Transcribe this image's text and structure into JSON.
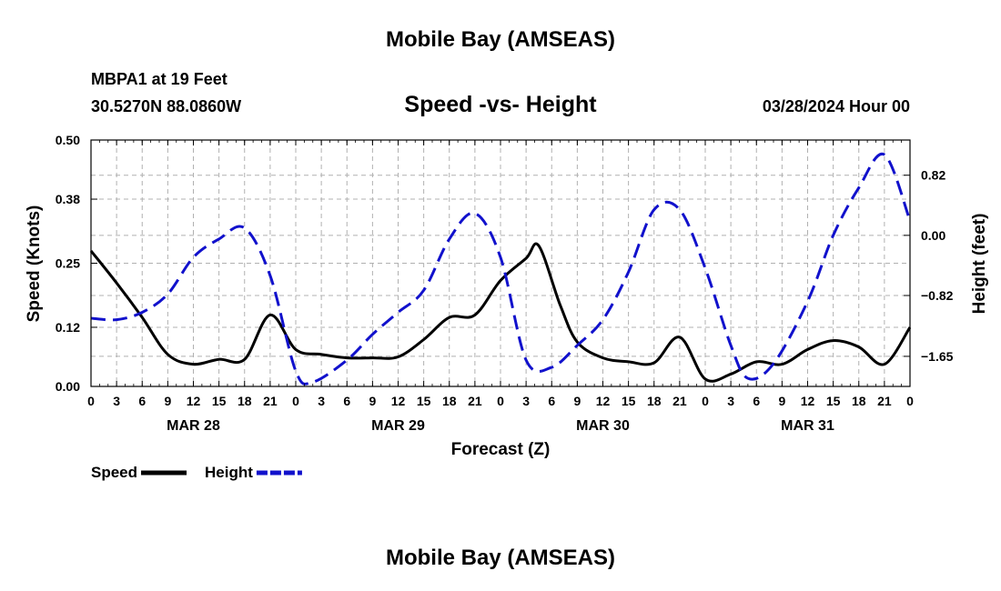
{
  "header": {
    "title": "Mobile Bay (AMSEAS)",
    "station": "MBPA1 at 19 Feet",
    "coords": "30.5270N  88.0860W",
    "date": "03/28/2024 Hour 00",
    "bottom_title": "Mobile Bay (AMSEAS)"
  },
  "chart_data": {
    "type": "line",
    "title": "Speed -vs- Height",
    "xlabel": "Forecast (Z)",
    "ylabel": "Speed (Knots)",
    "y2label": "Height (feet)",
    "x_unit": "forecast hour",
    "xlim": [
      0,
      96
    ],
    "ylim": [
      0,
      0.5
    ],
    "y2lim": [
      -2.06,
      1.3
    ],
    "x_ticks": [
      0,
      3,
      6,
      9,
      12,
      15,
      18,
      21,
      24,
      27,
      30,
      33,
      36,
      39,
      42,
      45,
      48,
      51,
      54,
      57,
      60,
      63,
      66,
      69,
      72,
      75,
      78,
      81,
      84,
      87,
      90,
      93,
      96
    ],
    "x_tick_labels": [
      "0",
      "3",
      "6",
      "9",
      "12",
      "15",
      "18",
      "21",
      "0",
      "3",
      "6",
      "9",
      "12",
      "15",
      "18",
      "21",
      "0",
      "3",
      "6",
      "9",
      "12",
      "15",
      "18",
      "21",
      "0",
      "3",
      "6",
      "9",
      "12",
      "15",
      "18",
      "21",
      "0"
    ],
    "day_labels": [
      {
        "label": "MAR 28",
        "at": 12
      },
      {
        "label": "MAR 29",
        "at": 36
      },
      {
        "label": "MAR 30",
        "at": 60
      },
      {
        "label": "MAR 31",
        "at": 84
      }
    ],
    "y_ticks": [
      0,
      0.12,
      0.25,
      0.38,
      0.5
    ],
    "y_tick_labels": [
      "0.00",
      "0.12",
      "0.25",
      "0.38",
      "0.50"
    ],
    "y2_ticks": [
      0.82,
      0,
      -0.82,
      -1.65
    ],
    "y2_tick_labels": [
      "0.82",
      "0.00",
      "−0.82",
      "−1.65"
    ],
    "grid": true,
    "legend_position": "bottom-left",
    "series": [
      {
        "name": "Speed",
        "axis": "left",
        "color": "#000000",
        "dash": "solid",
        "points": [
          [
            0,
            0.275
          ],
          [
            3,
            0.21
          ],
          [
            6,
            0.14
          ],
          [
            9,
            0.065
          ],
          [
            12,
            0.045
          ],
          [
            15,
            0.055
          ],
          [
            18,
            0.055
          ],
          [
            21,
            0.145
          ],
          [
            24,
            0.075
          ],
          [
            27,
            0.065
          ],
          [
            30,
            0.058
          ],
          [
            33,
            0.058
          ],
          [
            36,
            0.06
          ],
          [
            39,
            0.095
          ],
          [
            42,
            0.14
          ],
          [
            45,
            0.145
          ],
          [
            48,
            0.215
          ],
          [
            51,
            0.26
          ],
          [
            52.5,
            0.285
          ],
          [
            55,
            0.165
          ],
          [
            57,
            0.09
          ],
          [
            60,
            0.058
          ],
          [
            63,
            0.05
          ],
          [
            66,
            0.048
          ],
          [
            69,
            0.1
          ],
          [
            72,
            0.015
          ],
          [
            75,
            0.025
          ],
          [
            78,
            0.05
          ],
          [
            81,
            0.045
          ],
          [
            84,
            0.075
          ],
          [
            87,
            0.093
          ],
          [
            90,
            0.08
          ],
          [
            93,
            0.045
          ],
          [
            96,
            0.12
          ]
        ]
      },
      {
        "name": "Height",
        "axis": "right",
        "color": "#1111cc",
        "dash": "dashed",
        "points": [
          [
            0,
            -1.13
          ],
          [
            3,
            -1.15
          ],
          [
            6,
            -1.05
          ],
          [
            9,
            -0.8
          ],
          [
            12,
            -0.3
          ],
          [
            15,
            -0.05
          ],
          [
            18,
            0.1
          ],
          [
            21,
            -0.55
          ],
          [
            24,
            -1.85
          ],
          [
            26,
            -2.0
          ],
          [
            30,
            -1.7
          ],
          [
            33,
            -1.35
          ],
          [
            36,
            -1.05
          ],
          [
            39,
            -0.75
          ],
          [
            42,
            -0.05
          ],
          [
            45,
            0.3
          ],
          [
            48,
            -0.3
          ],
          [
            51,
            -1.7
          ],
          [
            54,
            -1.8
          ],
          [
            57,
            -1.5
          ],
          [
            60,
            -1.15
          ],
          [
            63,
            -0.5
          ],
          [
            66,
            0.35
          ],
          [
            69,
            0.35
          ],
          [
            72,
            -0.45
          ],
          [
            75,
            -1.5
          ],
          [
            77,
            -1.95
          ],
          [
            80,
            -1.75
          ],
          [
            84,
            -0.9
          ],
          [
            87,
            0.0
          ],
          [
            90,
            0.65
          ],
          [
            93,
            1.1
          ],
          [
            96,
            0.2
          ]
        ]
      }
    ],
    "legend": [
      {
        "label": "Speed",
        "series": "Speed"
      },
      {
        "label": "Height",
        "series": "Height"
      }
    ]
  }
}
